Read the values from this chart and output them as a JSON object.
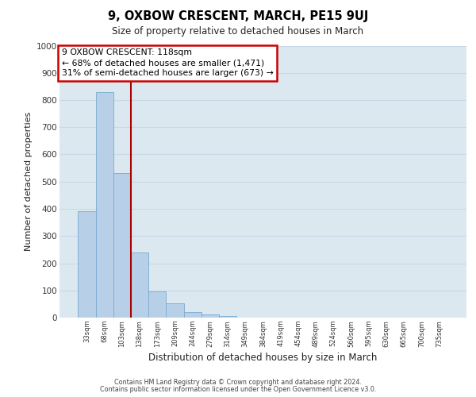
{
  "title": "9, OXBOW CRESCENT, MARCH, PE15 9UJ",
  "subtitle": "Size of property relative to detached houses in March",
  "xlabel": "Distribution of detached houses by size in March",
  "ylabel": "Number of detached properties",
  "bar_labels": [
    "33sqm",
    "68sqm",
    "103sqm",
    "138sqm",
    "173sqm",
    "209sqm",
    "244sqm",
    "279sqm",
    "314sqm",
    "349sqm",
    "384sqm",
    "419sqm",
    "454sqm",
    "489sqm",
    "524sqm",
    "560sqm",
    "595sqm",
    "630sqm",
    "665sqm",
    "700sqm",
    "735sqm"
  ],
  "bar_values": [
    390,
    830,
    530,
    240,
    97,
    52,
    20,
    13,
    7,
    0,
    0,
    0,
    0,
    0,
    0,
    0,
    0,
    0,
    0,
    0,
    0
  ],
  "bar_color": "#b8cfe8",
  "bar_edge_color": "#7aaad0",
  "vline_x": 2.5,
  "vline_color": "#aa0000",
  "annotation_line1": "9 OXBOW CRESCENT: 118sqm",
  "annotation_line2": "← 68% of detached houses are smaller (1,471)",
  "annotation_line3": "31% of semi-detached houses are larger (673) →",
  "annotation_box_color": "#cc0000",
  "annotation_text_color": "#000000",
  "ylim": [
    0,
    1000
  ],
  "yticks": [
    0,
    100,
    200,
    300,
    400,
    500,
    600,
    700,
    800,
    900,
    1000
  ],
  "grid_color": "#c8d8e8",
  "bg_color": "#dce8f0",
  "footer_line1": "Contains HM Land Registry data © Crown copyright and database right 2024.",
  "footer_line2": "Contains public sector information licensed under the Open Government Licence v3.0."
}
